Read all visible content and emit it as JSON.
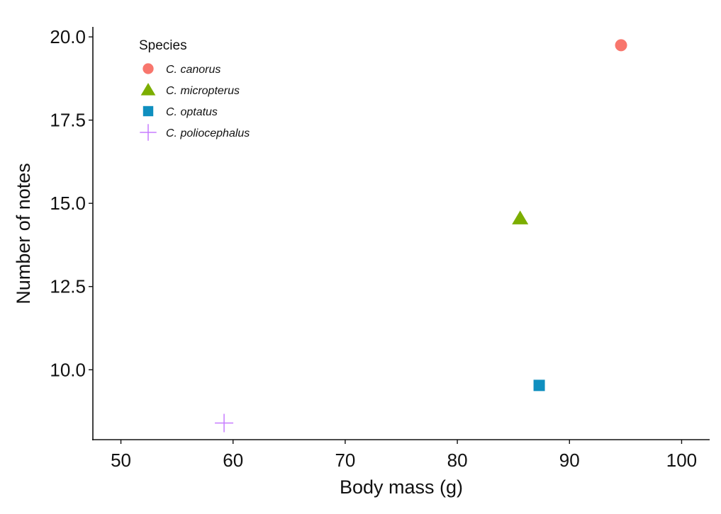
{
  "chart_data": {
    "type": "scatter",
    "title": "",
    "xlabel": "Body mass (g)",
    "ylabel": "Number of notes",
    "xlim": [
      47.5,
      102.5
    ],
    "ylim": [
      7.9,
      20.3
    ],
    "xticks": [
      50,
      60,
      70,
      80,
      90,
      100
    ],
    "xtick_labels": [
      "50",
      "60",
      "70",
      "80",
      "90",
      "100"
    ],
    "yticks": [
      10.0,
      12.5,
      15.0,
      17.5,
      20.0
    ],
    "ytick_labels": [
      "10.0",
      "12.5",
      "15.0",
      "17.5",
      "20.0"
    ],
    "grid": false,
    "legend": {
      "title": "Species",
      "placement": "top-left"
    },
    "series": [
      {
        "name": "C. canorus",
        "shape": "circle",
        "color": "#F8766D",
        "x": 94.6,
        "y": 19.75
      },
      {
        "name": "C. micropterus",
        "shape": "triangle",
        "color": "#7CAE00",
        "x": 85.6,
        "y": 14.55
      },
      {
        "name": "C. optatus",
        "shape": "square",
        "color": "#0F8FBF",
        "x": 87.3,
        "y": 9.53
      },
      {
        "name": "C. poliocephalus",
        "shape": "plus",
        "color": "#C77CFF",
        "x": 59.2,
        "y": 8.4
      }
    ]
  }
}
